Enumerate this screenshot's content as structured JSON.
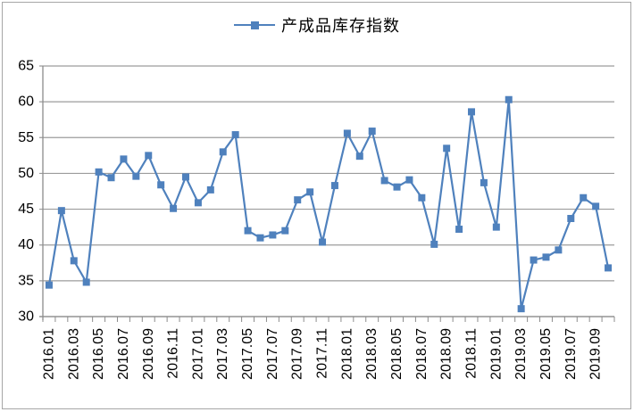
{
  "window": {
    "background": "#FFFFFF",
    "border_color": "#A6A6A6"
  },
  "chart_data": {
    "type": "line",
    "title": "",
    "legend_label": "产成品库存指数",
    "legend_position": "top-center",
    "series_color": "#4F81BD",
    "marker_shape": "square",
    "grid": true,
    "grid_color": "#9C9C9C",
    "axis_color": "#8C8C8C",
    "ylim": [
      30,
      65
    ],
    "ytick_step": 5,
    "yticks": [
      30,
      35,
      40,
      45,
      50,
      55,
      60,
      65
    ],
    "x_label_interval": 2,
    "categories": [
      "2016.01",
      "2016.02",
      "2016.03",
      "2016.04",
      "2016.05",
      "2016.06",
      "2016.07",
      "2016.08",
      "2016.09",
      "2016.10",
      "2016.11",
      "2016.12",
      "2017.01",
      "2017.02",
      "2017.03",
      "2017.04",
      "2017.05",
      "2017.06",
      "2017.07",
      "2017.08",
      "2017.09",
      "2017.10",
      "2017.11",
      "2017.12",
      "2018.01",
      "2018.02",
      "2018.03",
      "2018.04",
      "2018.05",
      "2018.06",
      "2018.07",
      "2018.08",
      "2018.09",
      "2018.10",
      "2018.11",
      "2018.12",
      "2019.01",
      "2019.02",
      "2019.03",
      "2019.04",
      "2019.05",
      "2019.06",
      "2019.07",
      "2019.08",
      "2019.09",
      "2019.10"
    ],
    "values": [
      34.4,
      44.8,
      37.8,
      34.8,
      50.2,
      49.4,
      52.0,
      49.6,
      52.5,
      48.4,
      45.1,
      49.5,
      45.9,
      47.7,
      53.0,
      55.4,
      42.0,
      41.0,
      41.4,
      42.0,
      46.3,
      47.4,
      40.4,
      48.3,
      55.6,
      52.4,
      55.9,
      49.0,
      48.1,
      49.1,
      46.6,
      40.1,
      53.5,
      42.2,
      58.6,
      48.7,
      42.5,
      60.3,
      31.1,
      37.9,
      38.3,
      39.3,
      43.7,
      46.6,
      45.4,
      36.8
    ]
  }
}
